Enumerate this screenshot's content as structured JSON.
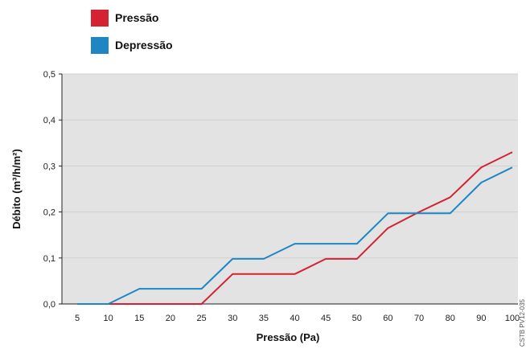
{
  "chart_data": {
    "type": "line",
    "title": "",
    "xlabel": "Pressão (Pa)",
    "ylabel": "Débito (m³/h/m²)",
    "categories": [
      "5",
      "10",
      "15",
      "20",
      "25",
      "30",
      "35",
      "40",
      "45",
      "50",
      "60",
      "70",
      "80",
      "90",
      "100"
    ],
    "ylim": [
      0,
      0.5
    ],
    "yticks": [
      "0,0",
      "0,1",
      "0,2",
      "0,3",
      "0,4",
      "0,5"
    ],
    "grid": true,
    "legend": "top-left",
    "series": [
      {
        "name": "Pressão",
        "color": "#d42232",
        "x": [
          "10",
          "25",
          "30",
          "40",
          "45",
          "50",
          "60",
          "70",
          "80",
          "90",
          "100"
        ],
        "values": [
          0.0,
          0.0,
          0.065,
          0.065,
          0.098,
          0.098,
          0.165,
          0.2,
          0.232,
          0.297,
          0.33
        ]
      },
      {
        "name": "Depressão",
        "color": "#1f86c4",
        "x": [
          "5",
          "10",
          "15",
          "25",
          "30",
          "35",
          "40",
          "50",
          "60",
          "80",
          "90",
          "100"
        ],
        "values": [
          0.0,
          0.0,
          0.033,
          0.033,
          0.098,
          0.098,
          0.131,
          0.131,
          0.197,
          0.197,
          0.264,
          0.297
        ]
      }
    ],
    "watermark": "CSTB PV12-035"
  }
}
